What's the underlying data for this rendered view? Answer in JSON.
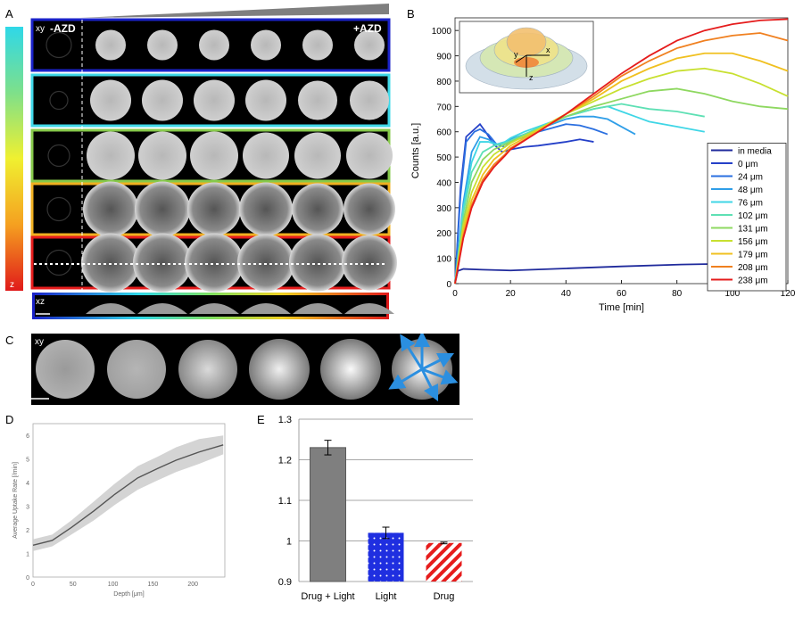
{
  "panel_labels": {
    "a": "A",
    "b": "B",
    "c": "C",
    "d": "D",
    "e": "E"
  },
  "panel_a": {
    "xy_label": "xy",
    "minus_label": "-AZD",
    "plus_label": "+AZD",
    "xz_label": "xz",
    "z_label": "z",
    "row_border_colors": [
      "#1a22c8",
      "#3fd8e8",
      "#86c94a",
      "#f0b020",
      "#e61c1c"
    ],
    "frame_count": 7
  },
  "panel_b_inset": {
    "x_label": "x",
    "y_label": "y",
    "z_label": "z"
  },
  "panel_c": {
    "xy_label": "xy",
    "arrow_color": "#2b8fe0"
  },
  "chart_data": [
    {
      "id": "B",
      "type": "line",
      "xlabel": "Time [min]",
      "ylabel": "Counts [a.u.]",
      "xlim": [
        0,
        120
      ],
      "ylim": [
        0,
        1050
      ],
      "xticks": [
        0,
        20,
        40,
        60,
        80,
        100,
        120
      ],
      "yticks": [
        0,
        100,
        200,
        300,
        400,
        500,
        600,
        700,
        800,
        900,
        1000
      ],
      "legend_position": "bottom-right",
      "series": [
        {
          "name": "in media",
          "color": "#1f2a9c",
          "x": [
            0,
            1,
            3,
            10,
            20,
            40,
            60,
            80,
            95
          ],
          "y": [
            0,
            50,
            58,
            55,
            52,
            60,
            68,
            75,
            78
          ]
        },
        {
          "name": "0 μm",
          "color": "#2540c8",
          "x": [
            0,
            2,
            4,
            7,
            9,
            11,
            14,
            17,
            20,
            25,
            30,
            40,
            45,
            50
          ],
          "y": [
            0,
            380,
            580,
            610,
            630,
            600,
            550,
            520,
            530,
            540,
            545,
            560,
            570,
            560
          ]
        },
        {
          "name": "24 μm",
          "color": "#2a6fe0",
          "x": [
            0,
            2,
            4,
            7,
            9,
            12,
            15,
            18,
            20,
            25,
            30,
            35,
            40,
            45,
            50,
            55
          ],
          "y": [
            0,
            350,
            560,
            600,
            610,
            590,
            550,
            540,
            560,
            580,
            600,
            615,
            630,
            625,
            610,
            590
          ]
        },
        {
          "name": "48 μm",
          "color": "#2f9ee8",
          "x": [
            0,
            3,
            6,
            9,
            12,
            15,
            18,
            20,
            25,
            30,
            40,
            45,
            50,
            55,
            60,
            65
          ],
          "y": [
            0,
            320,
            520,
            580,
            570,
            550,
            560,
            570,
            590,
            610,
            650,
            660,
            660,
            650,
            620,
            590
          ]
        },
        {
          "name": "76 μm",
          "color": "#3fd6e6",
          "x": [
            0,
            3,
            6,
            9,
            12,
            15,
            18,
            20,
            25,
            30,
            40,
            50,
            55,
            60,
            65,
            70,
            80,
            90
          ],
          "y": [
            0,
            300,
            480,
            560,
            560,
            550,
            560,
            575,
            600,
            620,
            660,
            690,
            700,
            680,
            660,
            640,
            620,
            600
          ]
        },
        {
          "name": "102 μm",
          "color": "#5ee0b4",
          "x": [
            0,
            3,
            6,
            10,
            14,
            18,
            20,
            25,
            30,
            40,
            50,
            60,
            65,
            70,
            80,
            90
          ],
          "y": [
            0,
            280,
            440,
            520,
            545,
            555,
            565,
            590,
            615,
            660,
            690,
            710,
            700,
            690,
            680,
            660
          ]
        },
        {
          "name": "131 μm",
          "color": "#8ed860",
          "x": [
            0,
            3,
            6,
            10,
            14,
            18,
            20,
            30,
            40,
            50,
            60,
            70,
            80,
            90,
            100,
            110,
            120
          ],
          "y": [
            0,
            250,
            400,
            490,
            530,
            550,
            560,
            610,
            660,
            700,
            730,
            760,
            770,
            750,
            720,
            700,
            690
          ]
        },
        {
          "name": "156 μm",
          "color": "#c8e030",
          "x": [
            0,
            3,
            6,
            10,
            14,
            18,
            20,
            30,
            40,
            50,
            60,
            70,
            80,
            90,
            100,
            110,
            120
          ],
          "y": [
            0,
            230,
            360,
            460,
            510,
            540,
            555,
            610,
            670,
            720,
            770,
            810,
            840,
            850,
            830,
            790,
            740
          ]
        },
        {
          "name": "179 μm",
          "color": "#f0c020",
          "x": [
            0,
            3,
            6,
            10,
            14,
            18,
            20,
            30,
            40,
            50,
            60,
            70,
            80,
            90,
            100,
            110,
            120
          ],
          "y": [
            0,
            210,
            330,
            430,
            490,
            525,
            545,
            605,
            670,
            730,
            800,
            850,
            890,
            910,
            910,
            880,
            840
          ]
        },
        {
          "name": "208 μm",
          "color": "#f08020",
          "x": [
            0,
            3,
            6,
            10,
            14,
            18,
            20,
            30,
            40,
            50,
            60,
            70,
            80,
            90,
            100,
            110,
            120
          ],
          "y": [
            0,
            190,
            310,
            410,
            470,
            510,
            535,
            600,
            670,
            740,
            820,
            880,
            930,
            960,
            980,
            990,
            960
          ]
        },
        {
          "name": "238 μm",
          "color": "#e51c1c",
          "x": [
            0,
            3,
            6,
            10,
            14,
            18,
            20,
            30,
            40,
            50,
            60,
            70,
            80,
            90,
            100,
            110,
            120
          ],
          "y": [
            0,
            180,
            300,
            400,
            460,
            505,
            530,
            600,
            670,
            750,
            830,
            900,
            960,
            1000,
            1025,
            1040,
            1045
          ]
        }
      ]
    },
    {
      "id": "D",
      "type": "line",
      "xlabel": "Depth [μm]",
      "ylabel": "Average Uptake Rate [/min]",
      "xlim": [
        0,
        240
      ],
      "ylim": [
        0,
        6.5
      ],
      "xticks": [
        0,
        50,
        100,
        150,
        200
      ],
      "yticks": [
        0,
        1,
        2,
        3,
        4,
        5,
        6
      ],
      "series": [
        {
          "name": "mean",
          "x": [
            0,
            24,
            48,
            76,
            102,
            131,
            156,
            179,
            208,
            238
          ],
          "y": [
            1.35,
            1.55,
            2.1,
            2.8,
            3.5,
            4.2,
            4.6,
            4.95,
            5.3,
            5.6
          ]
        },
        {
          "name": "upper",
          "x": [
            0,
            24,
            48,
            76,
            102,
            131,
            156,
            179,
            208,
            238
          ],
          "y": [
            1.6,
            1.8,
            2.4,
            3.2,
            3.95,
            4.7,
            5.1,
            5.5,
            5.85,
            6.0
          ]
        },
        {
          "name": "lower",
          "x": [
            0,
            24,
            48,
            76,
            102,
            131,
            156,
            179,
            208,
            238
          ],
          "y": [
            1.1,
            1.3,
            1.8,
            2.4,
            3.05,
            3.7,
            4.1,
            4.45,
            4.8,
            5.2
          ]
        }
      ]
    },
    {
      "id": "E",
      "type": "bar",
      "categories": [
        "Drug + Light",
        "Light",
        "Drug"
      ],
      "values": [
        1.23,
        1.02,
        0.995
      ],
      "errors": [
        0.018,
        0.014,
        0.002
      ],
      "ylim": [
        0.9,
        1.3
      ],
      "yticks": [
        "0.9",
        "1",
        "1.1",
        "1.2",
        "1.3"
      ],
      "bar_colors": [
        "#7f7f7f",
        "#1f2fe0",
        "#e61c1c"
      ],
      "grid": true
    }
  ]
}
